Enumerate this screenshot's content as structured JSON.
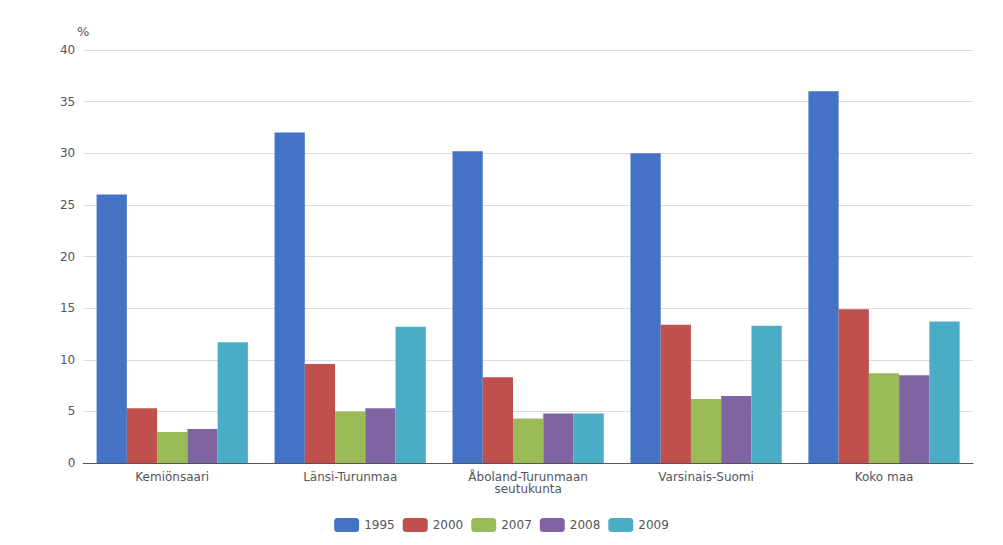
{
  "chart_data": {
    "type": "bar",
    "categories": [
      "Kemiönsaari",
      "Länsi-Turunmaa",
      "Åboland-Turunmaan\nseutukunta",
      "Varsinais-Suomi",
      "Koko maa"
    ],
    "series": [
      {
        "name": "1995",
        "color": "#4472C4",
        "values": [
          26,
          32,
          30.2,
          30,
          36
        ]
      },
      {
        "name": "2000",
        "color": "#C0504D",
        "values": [
          5.3,
          9.6,
          8.3,
          13.4,
          14.9
        ]
      },
      {
        "name": "2007",
        "color": "#9BBB59",
        "values": [
          3.0,
          5.0,
          4.3,
          6.2,
          8.7
        ]
      },
      {
        "name": "2008",
        "color": "#8064A2",
        "values": [
          3.3,
          5.3,
          4.8,
          6.5,
          8.5
        ]
      },
      {
        "name": "2009",
        "color": "#4BACC6",
        "values": [
          11.7,
          13.2,
          4.8,
          13.3,
          13.7
        ]
      }
    ],
    "ylabel": "%",
    "ylim": [
      0,
      40
    ],
    "yticks": [
      0,
      5,
      10,
      15,
      20,
      25,
      30,
      35,
      40
    ],
    "grid": true,
    "legend": "bottom"
  }
}
